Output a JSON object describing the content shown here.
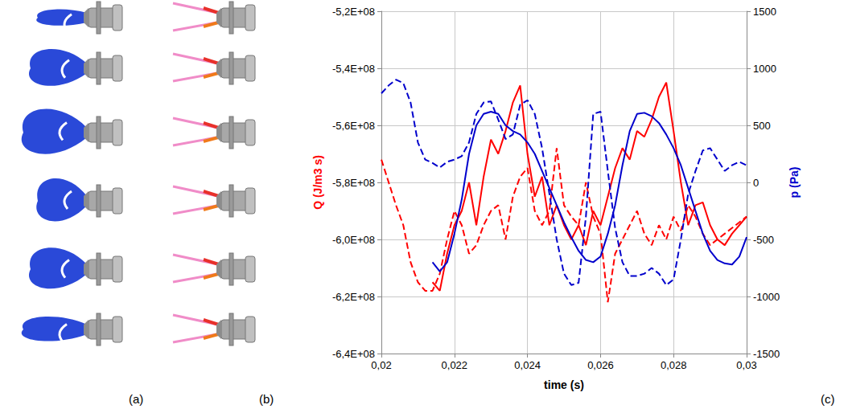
{
  "panel_labels": [
    "(a)",
    "(b)",
    "(c)"
  ],
  "chart_data": {
    "type": "line",
    "x_label": "time (s)",
    "y_label": "Q (J/m3 s)",
    "y2_label": "p (Pa)",
    "grid": true,
    "xlim": [
      0.02,
      0.03
    ],
    "xticks": [
      {
        "value": 0.02,
        "label": "0,02"
      },
      {
        "value": 0.022,
        "label": "0,022"
      },
      {
        "value": 0.024,
        "label": "0,024"
      },
      {
        "value": 0.026,
        "label": "0,026"
      },
      {
        "value": 0.028,
        "label": "0,028"
      },
      {
        "value": 0.03,
        "label": "0,03"
      }
    ],
    "ylim": [
      -640000000.0,
      -520000000.0
    ],
    "yticks": [
      {
        "value": -640000000.0,
        "label": "-6,4E+08"
      },
      {
        "value": -620000000.0,
        "label": "-6,2E+08"
      },
      {
        "value": -600000000.0,
        "label": "-6,0E+08"
      },
      {
        "value": -580000000.0,
        "label": "-5,8E+08"
      },
      {
        "value": -560000000.0,
        "label": "-5,6E+08"
      },
      {
        "value": -540000000.0,
        "label": "-5,4E+08"
      },
      {
        "value": -520000000.0,
        "label": "-5,2E+08"
      }
    ],
    "y2lim": [
      -1500,
      1500
    ],
    "y2ticks": [
      -1500,
      -1000,
      -500,
      0,
      500,
      1000,
      1500
    ],
    "x": [
      0.02,
      0.0202,
      0.0204,
      0.0206,
      0.0208,
      0.021,
      0.0212,
      0.0214,
      0.0216,
      0.0218,
      0.022,
      0.0222,
      0.0224,
      0.0226,
      0.0228,
      0.023,
      0.0232,
      0.0234,
      0.0236,
      0.0238,
      0.024,
      0.0242,
      0.0244,
      0.0246,
      0.0248,
      0.025,
      0.0252,
      0.0254,
      0.0256,
      0.0258,
      0.026,
      0.0262,
      0.0264,
      0.0266,
      0.0268,
      0.027,
      0.0272,
      0.0274,
      0.0276,
      0.0278,
      0.028,
      0.0282,
      0.0284,
      0.0286,
      0.0288,
      0.029,
      0.0292,
      0.0294,
      0.0296,
      0.0298,
      0.03
    ],
    "series": [
      {
        "color": "#ff0000",
        "line_style": "solid",
        "values": [
          null,
          null,
          null,
          null,
          null,
          null,
          null,
          -615000000.0,
          -618000000.0,
          -605000000.0,
          -595000000.0,
          -590000000.0,
          -580000000.0,
          -595000000.0,
          -578000000.0,
          -565000000.0,
          -570000000.0,
          -562000000.0,
          -552000000.0,
          -546000000.0,
          -570000000.0,
          -585000000.0,
          -578000000.0,
          -595000000.0,
          -588000000.0,
          -595000000.0,
          -600000000.0,
          -595000000.0,
          -602000000.0,
          -590000000.0,
          -595000000.0,
          -585000000.0,
          -575000000.0,
          -568000000.0,
          -572000000.0,
          -562000000.0,
          -564000000.0,
          -558000000.0,
          -550000000.0,
          -545000000.0,
          -562000000.0,
          -580000000.0,
          -595000000.0,
          -588000000.0,
          -587000000.0,
          -595000000.0,
          -600000000.0,
          -602000000.0,
          -598000000.0,
          -595000000.0,
          -592000000.0
        ]
      },
      {
        "color": "#ff0000",
        "line_style": "dashed",
        "values": [
          -572000000.0,
          -580000000.0,
          -588000000.0,
          -595000000.0,
          -608000000.0,
          -615000000.0,
          -618000000.0,
          -618000000.0,
          -612000000.0,
          -600000000.0,
          -590000000.0,
          -595000000.0,
          -605000000.0,
          -602000000.0,
          -595000000.0,
          -590000000.0,
          -588000000.0,
          -600000000.0,
          -585000000.0,
          -578000000.0,
          -575000000.0,
          -590000000.0,
          -595000000.0,
          -590000000.0,
          -568000000.0,
          -588000000.0,
          -592000000.0,
          -595000000.0,
          -580000000.0,
          -592000000.0,
          -598000000.0,
          -622000000.0,
          -605000000.0,
          -600000000.0,
          -595000000.0,
          -590000000.0,
          -598000000.0,
          -602000000.0,
          -595000000.0,
          -600000000.0,
          -592000000.0,
          -597000000.0,
          -588000000.0,
          -592000000.0,
          -598000000.0,
          -602000000.0,
          -600000000.0,
          -598000000.0,
          -596000000.0,
          -594000000.0,
          -592000000.0
        ]
      },
      {
        "color": "#0000cc",
        "line_style": "solid",
        "axis": "y2",
        "values": [
          null,
          null,
          null,
          null,
          null,
          null,
          null,
          -700,
          -780,
          -700,
          -450,
          -150,
          250,
          500,
          600,
          620,
          600,
          500,
          450,
          420,
          350,
          250,
          100,
          -50,
          -200,
          -350,
          -480,
          -600,
          -680,
          -700,
          -650,
          -450,
          -200,
          150,
          450,
          600,
          610,
          580,
          520,
          420,
          300,
          150,
          -50,
          -250,
          -450,
          -600,
          -680,
          -710,
          -720,
          -650,
          -480
        ]
      },
      {
        "color": "#0000cc",
        "line_style": "dashed",
        "axis": "y2",
        "values": [
          780,
          850,
          900,
          870,
          700,
          350,
          200,
          170,
          130,
          180,
          200,
          230,
          350,
          600,
          700,
          710,
          550,
          380,
          420,
          680,
          720,
          600,
          300,
          -100,
          -500,
          -800,
          -900,
          -880,
          -300,
          600,
          620,
          100,
          -400,
          -700,
          -820,
          -820,
          -800,
          -750,
          -800,
          -900,
          -850,
          -500,
          -100,
          100,
          280,
          300,
          200,
          100,
          150,
          180,
          150
        ]
      }
    ]
  }
}
